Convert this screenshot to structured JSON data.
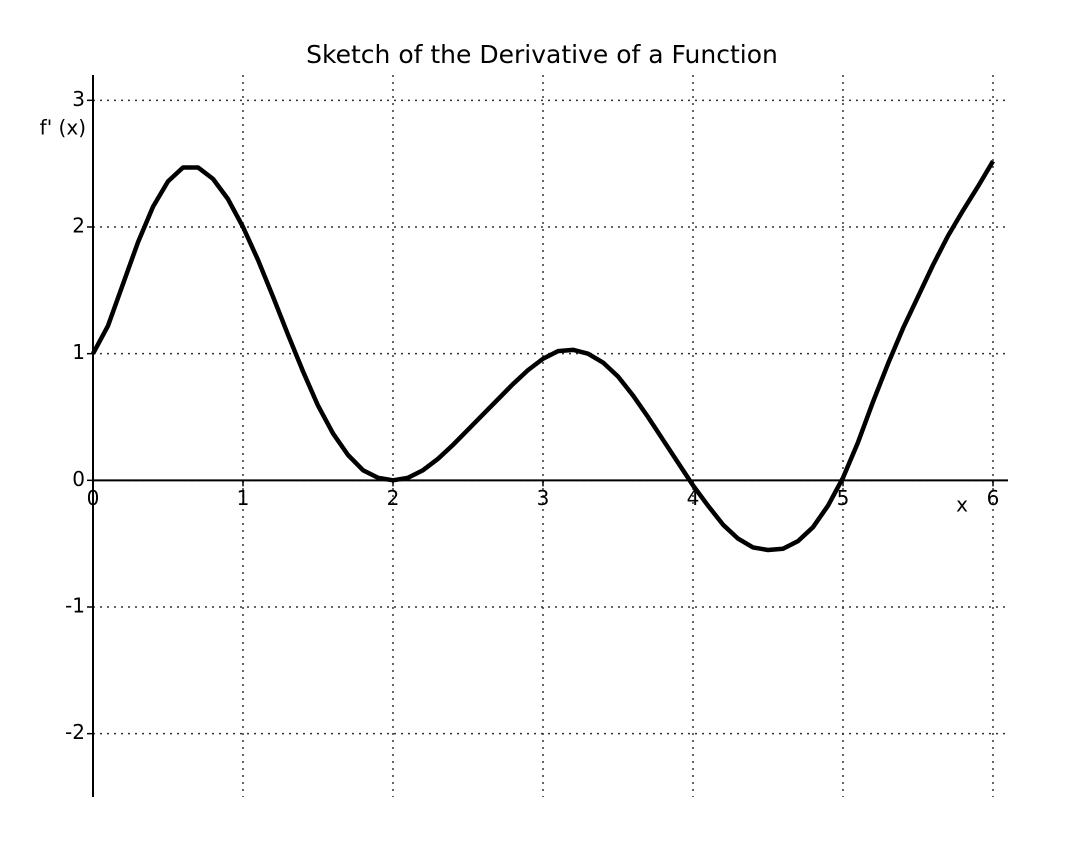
{
  "chart_data": {
    "type": "line",
    "title": "Sketch of the Derivative of a Function",
    "x_label": "x",
    "y_label": "f' (x)",
    "x": [
      0,
      0.1,
      0.2,
      0.3,
      0.4,
      0.5,
      0.6,
      0.7,
      0.8,
      0.9,
      1.0,
      1.1,
      1.2,
      1.3,
      1.4,
      1.5,
      1.6,
      1.7,
      1.8,
      1.9,
      2.0,
      2.1,
      2.2,
      2.3,
      2.4,
      2.5,
      2.6,
      2.7,
      2.8,
      2.9,
      3.0,
      3.1,
      3.2,
      3.3,
      3.4,
      3.5,
      3.6,
      3.7,
      3.8,
      3.9,
      4.0,
      4.1,
      4.2,
      4.3,
      4.4,
      4.5,
      4.6,
      4.7,
      4.8,
      4.9,
      5.0,
      5.1,
      5.2,
      5.3,
      5.4,
      5.5,
      5.6,
      5.7,
      5.8,
      5.9,
      6.0
    ],
    "series": [
      {
        "name": "f'(x)",
        "color": "#000000",
        "values": [
          1.0,
          1.22,
          1.55,
          1.88,
          2.16,
          2.36,
          2.47,
          2.47,
          2.38,
          2.22,
          2.0,
          1.74,
          1.45,
          1.15,
          0.86,
          0.59,
          0.37,
          0.2,
          0.08,
          0.02,
          0,
          0.02,
          0.08,
          0.17,
          0.28,
          0.4,
          0.52,
          0.64,
          0.76,
          0.87,
          0.96,
          1.02,
          1.03,
          1.0,
          0.93,
          0.82,
          0.67,
          0.5,
          0.32,
          0.14,
          -0.04,
          -0.2,
          -0.35,
          -0.46,
          -0.53,
          -0.55,
          -0.54,
          -0.48,
          -0.37,
          -0.2,
          0.02,
          0.3,
          0.62,
          0.92,
          1.2,
          1.45,
          1.7,
          1.93,
          2.13,
          2.32,
          2.52
        ]
      }
    ],
    "xlim": [
      0,
      6.1
    ],
    "ylim": [
      -2.5,
      3.2
    ],
    "xticks": [
      0,
      1,
      2,
      3,
      4,
      5,
      6
    ],
    "yticks": [
      -2,
      -1,
      0,
      1,
      2,
      3
    ],
    "grid": true
  }
}
